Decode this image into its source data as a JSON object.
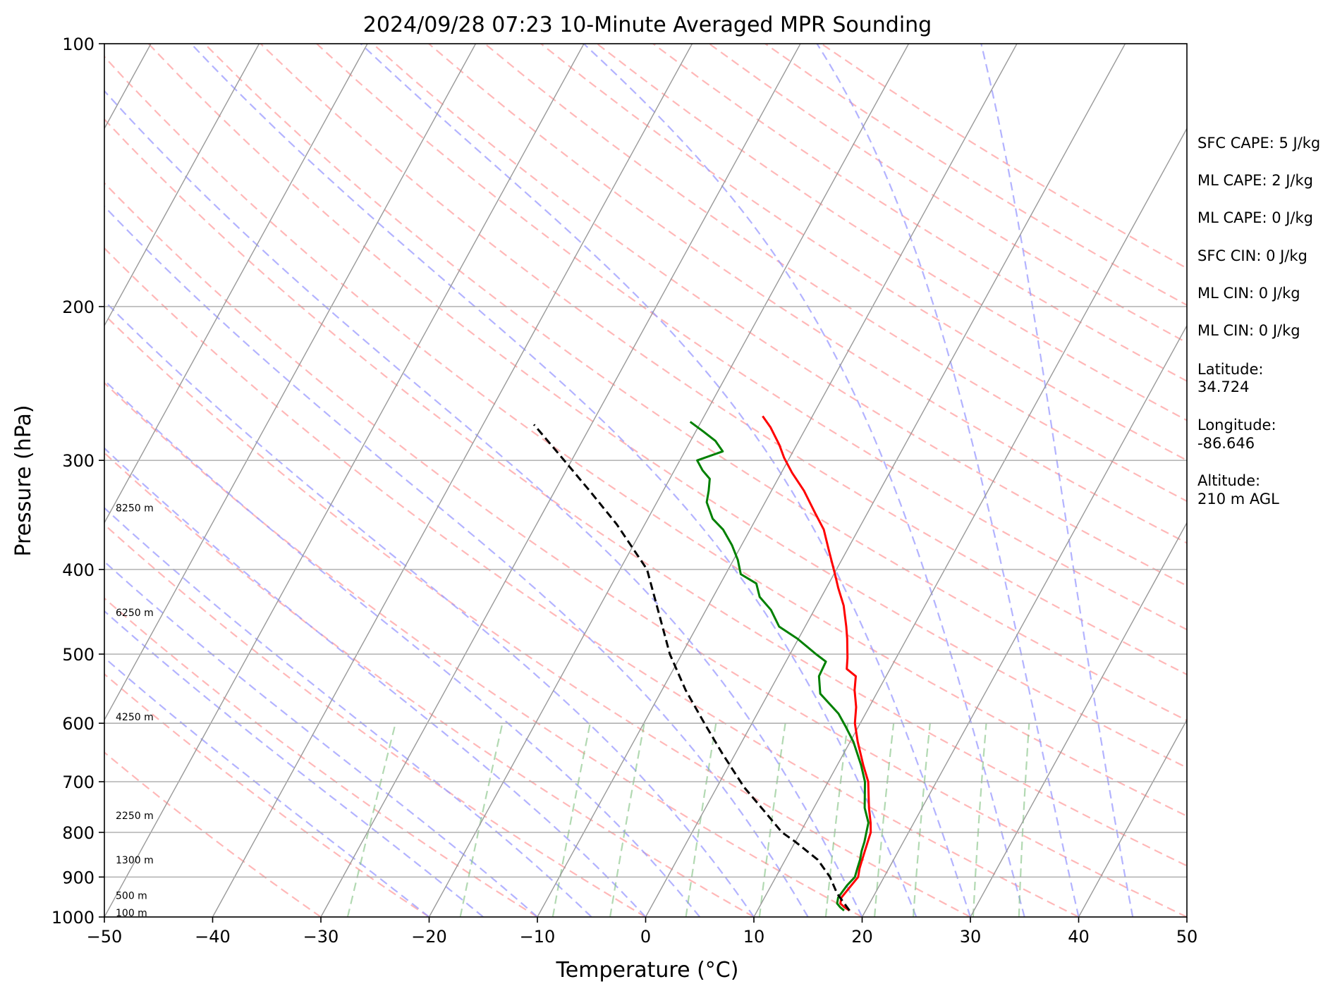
{
  "chart_data": {
    "type": "line",
    "chart_kind": "skew-t log-p",
    "title": "2024/09/28 07:23 10-Minute Averaged MPR Sounding",
    "xlabel": "Temperature (°C)",
    "ylabel": "Pressure (hPa)",
    "xlim": [
      -50,
      50
    ],
    "ylim": [
      1000,
      100
    ],
    "y_scale": "log",
    "x_ticks": [
      "−50",
      "−40",
      "−30",
      "−20",
      "−10",
      "0",
      "10",
      "20",
      "30",
      "40",
      "50"
    ],
    "y_ticks": [
      "100",
      "200",
      "300",
      "400",
      "500",
      "600",
      "700",
      "800",
      "900",
      "1000"
    ],
    "grid": true,
    "colors": {
      "temperature": "#ff0000",
      "dewpoint": "#008000",
      "parcel": "#000000",
      "dry_adiabats": "#ff9a9a",
      "moist_adiabats": "#9a9aff",
      "mixing_ratio": "#7fbf7f",
      "isotherms": "#999999"
    },
    "series": [
      {
        "key": "temperature",
        "points": [
          [
            18.5,
            983
          ],
          [
            17.9,
            975
          ],
          [
            17.3,
            965
          ],
          [
            17.1,
            950
          ],
          [
            17.4,
            920
          ],
          [
            17.6,
            900
          ],
          [
            17.3,
            880
          ],
          [
            17.1,
            860
          ],
          [
            16.9,
            840
          ],
          [
            16.7,
            820
          ],
          [
            16.5,
            800
          ],
          [
            16.0,
            780
          ],
          [
            15.1,
            750
          ],
          [
            13.7,
            700
          ],
          [
            12.4,
            670
          ],
          [
            10.7,
            630
          ],
          [
            9.5,
            600
          ],
          [
            8.8,
            575
          ],
          [
            7.8,
            550
          ],
          [
            7.2,
            530
          ],
          [
            6.0,
            520
          ],
          [
            5.5,
            505
          ],
          [
            4.5,
            480
          ],
          [
            3.8,
            465
          ],
          [
            2.5,
            440
          ],
          [
            1.1,
            420
          ],
          [
            0.1,
            405
          ],
          [
            -1.7,
            380
          ],
          [
            -3.2,
            360
          ],
          [
            -4.8,
            345
          ],
          [
            -7.0,
            325
          ],
          [
            -9.0,
            310
          ],
          [
            -10.5,
            298
          ],
          [
            -11.6,
            288
          ],
          [
            -13.3,
            275
          ],
          [
            -14.6,
            267
          ]
        ]
      },
      {
        "key": "dewpoint",
        "points": [
          [
            18.0,
            983
          ],
          [
            17.5,
            975
          ],
          [
            17.0,
            965
          ],
          [
            16.8,
            950
          ],
          [
            17.0,
            920
          ],
          [
            17.3,
            900
          ],
          [
            17.1,
            880
          ],
          [
            16.9,
            860
          ],
          [
            16.6,
            840
          ],
          [
            16.4,
            820
          ],
          [
            16.1,
            800
          ],
          [
            15.8,
            780
          ],
          [
            14.7,
            750
          ],
          [
            13.4,
            700
          ],
          [
            12.2,
            670
          ],
          [
            10.3,
            630
          ],
          [
            8.8,
            605
          ],
          [
            7.5,
            585
          ],
          [
            4.8,
            555
          ],
          [
            3.8,
            530
          ],
          [
            3.7,
            510
          ],
          [
            2.4,
            500
          ],
          [
            -0.1,
            480
          ],
          [
            -2.4,
            465
          ],
          [
            -4.0,
            445
          ],
          [
            -5.7,
            430
          ],
          [
            -6.7,
            415
          ],
          [
            -8.6,
            405
          ],
          [
            -9.6,
            390
          ],
          [
            -10.9,
            375
          ],
          [
            -12.5,
            360
          ],
          [
            -14.0,
            350
          ],
          [
            -15.4,
            335
          ],
          [
            -15.8,
            325
          ],
          [
            -16.3,
            315
          ],
          [
            -17.4,
            308
          ],
          [
            -18.4,
            300
          ],
          [
            -16.5,
            293
          ],
          [
            -17.7,
            285
          ],
          [
            -19.3,
            278
          ],
          [
            -21.0,
            271
          ]
        ]
      },
      {
        "key": "parcel",
        "points": [
          [
            18.5,
            983
          ],
          [
            16.5,
            940
          ],
          [
            15.0,
            900
          ],
          [
            13.0,
            860
          ],
          [
            10.0,
            820
          ],
          [
            8.3,
            800
          ],
          [
            5.5,
            755
          ],
          [
            2.5,
            710
          ],
          [
            -1.2,
            650
          ],
          [
            -4.4,
            600
          ],
          [
            -7.8,
            550
          ],
          [
            -11.1,
            500
          ],
          [
            -13.8,
            455
          ],
          [
            -17.5,
            400
          ],
          [
            -22.6,
            355
          ],
          [
            -26.8,
            325
          ],
          [
            -32.0,
            292
          ],
          [
            -35.3,
            273
          ]
        ]
      }
    ],
    "height_labels": [
      {
        "text": "100 m",
        "pressure": 989
      },
      {
        "text": "500 m",
        "pressure": 945
      },
      {
        "text": "1300 m",
        "pressure": 860
      },
      {
        "text": "2250 m",
        "pressure": 765
      },
      {
        "text": "4250 m",
        "pressure": 590
      },
      {
        "text": "6250 m",
        "pressure": 448
      },
      {
        "text": "8250 m",
        "pressure": 340
      }
    ],
    "info": {
      "sfc_cape": "SFC CAPE: 5 J/kg",
      "ml_cape_1": "ML CAPE: 2 J/kg",
      "ml_cape_2": "ML CAPE: 0 J/kg",
      "sfc_cin": "SFC CIN: 0 J/kg",
      "ml_cin_1": "ML CIN: 0 J/kg",
      "ml_cin_2": "ML CIN: 0 J/kg",
      "latitude_label": "Latitude:",
      "latitude_value": "34.724",
      "longitude_label": "Longitude:",
      "longitude_value": "-86.646",
      "altitude_label": "Altitude:",
      "altitude_value": "210 m AGL"
    }
  }
}
